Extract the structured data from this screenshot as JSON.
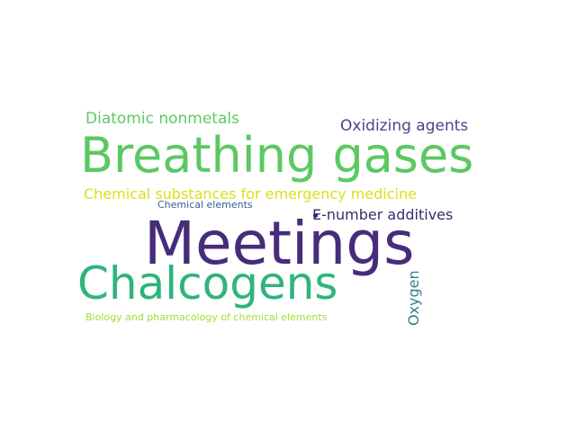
{
  "words": {
    "meetings": {
      "text": "Meetings",
      "color": "#472c7a"
    },
    "breathing_gases": {
      "text": "Breathing gases",
      "color": "#5cc863"
    },
    "chalcogens": {
      "text": "Chalcogens",
      "color": "#2fb47c"
    },
    "diatomic_nonmetals": {
      "text": "Diatomic nonmetals",
      "color": "#5ec962"
    },
    "oxidizing_agents": {
      "text": "Oxidizing agents",
      "color": "#46478a"
    },
    "chemical_substances": {
      "text": "Chemical substances for emergency medicine",
      "color": "#d8e219"
    },
    "chemical_elements": {
      "text": "Chemical elements",
      "color": "#355f8d"
    },
    "e_number_additives": {
      "text": "E-number additives",
      "color": "#3e2a6e"
    },
    "biology_pharmacology": {
      "text": "Biology and pharmacology of chemical elements",
      "color": "#a5db36"
    },
    "oxygen": {
      "text": "Oxygen",
      "color": "#3a7b8e"
    }
  }
}
